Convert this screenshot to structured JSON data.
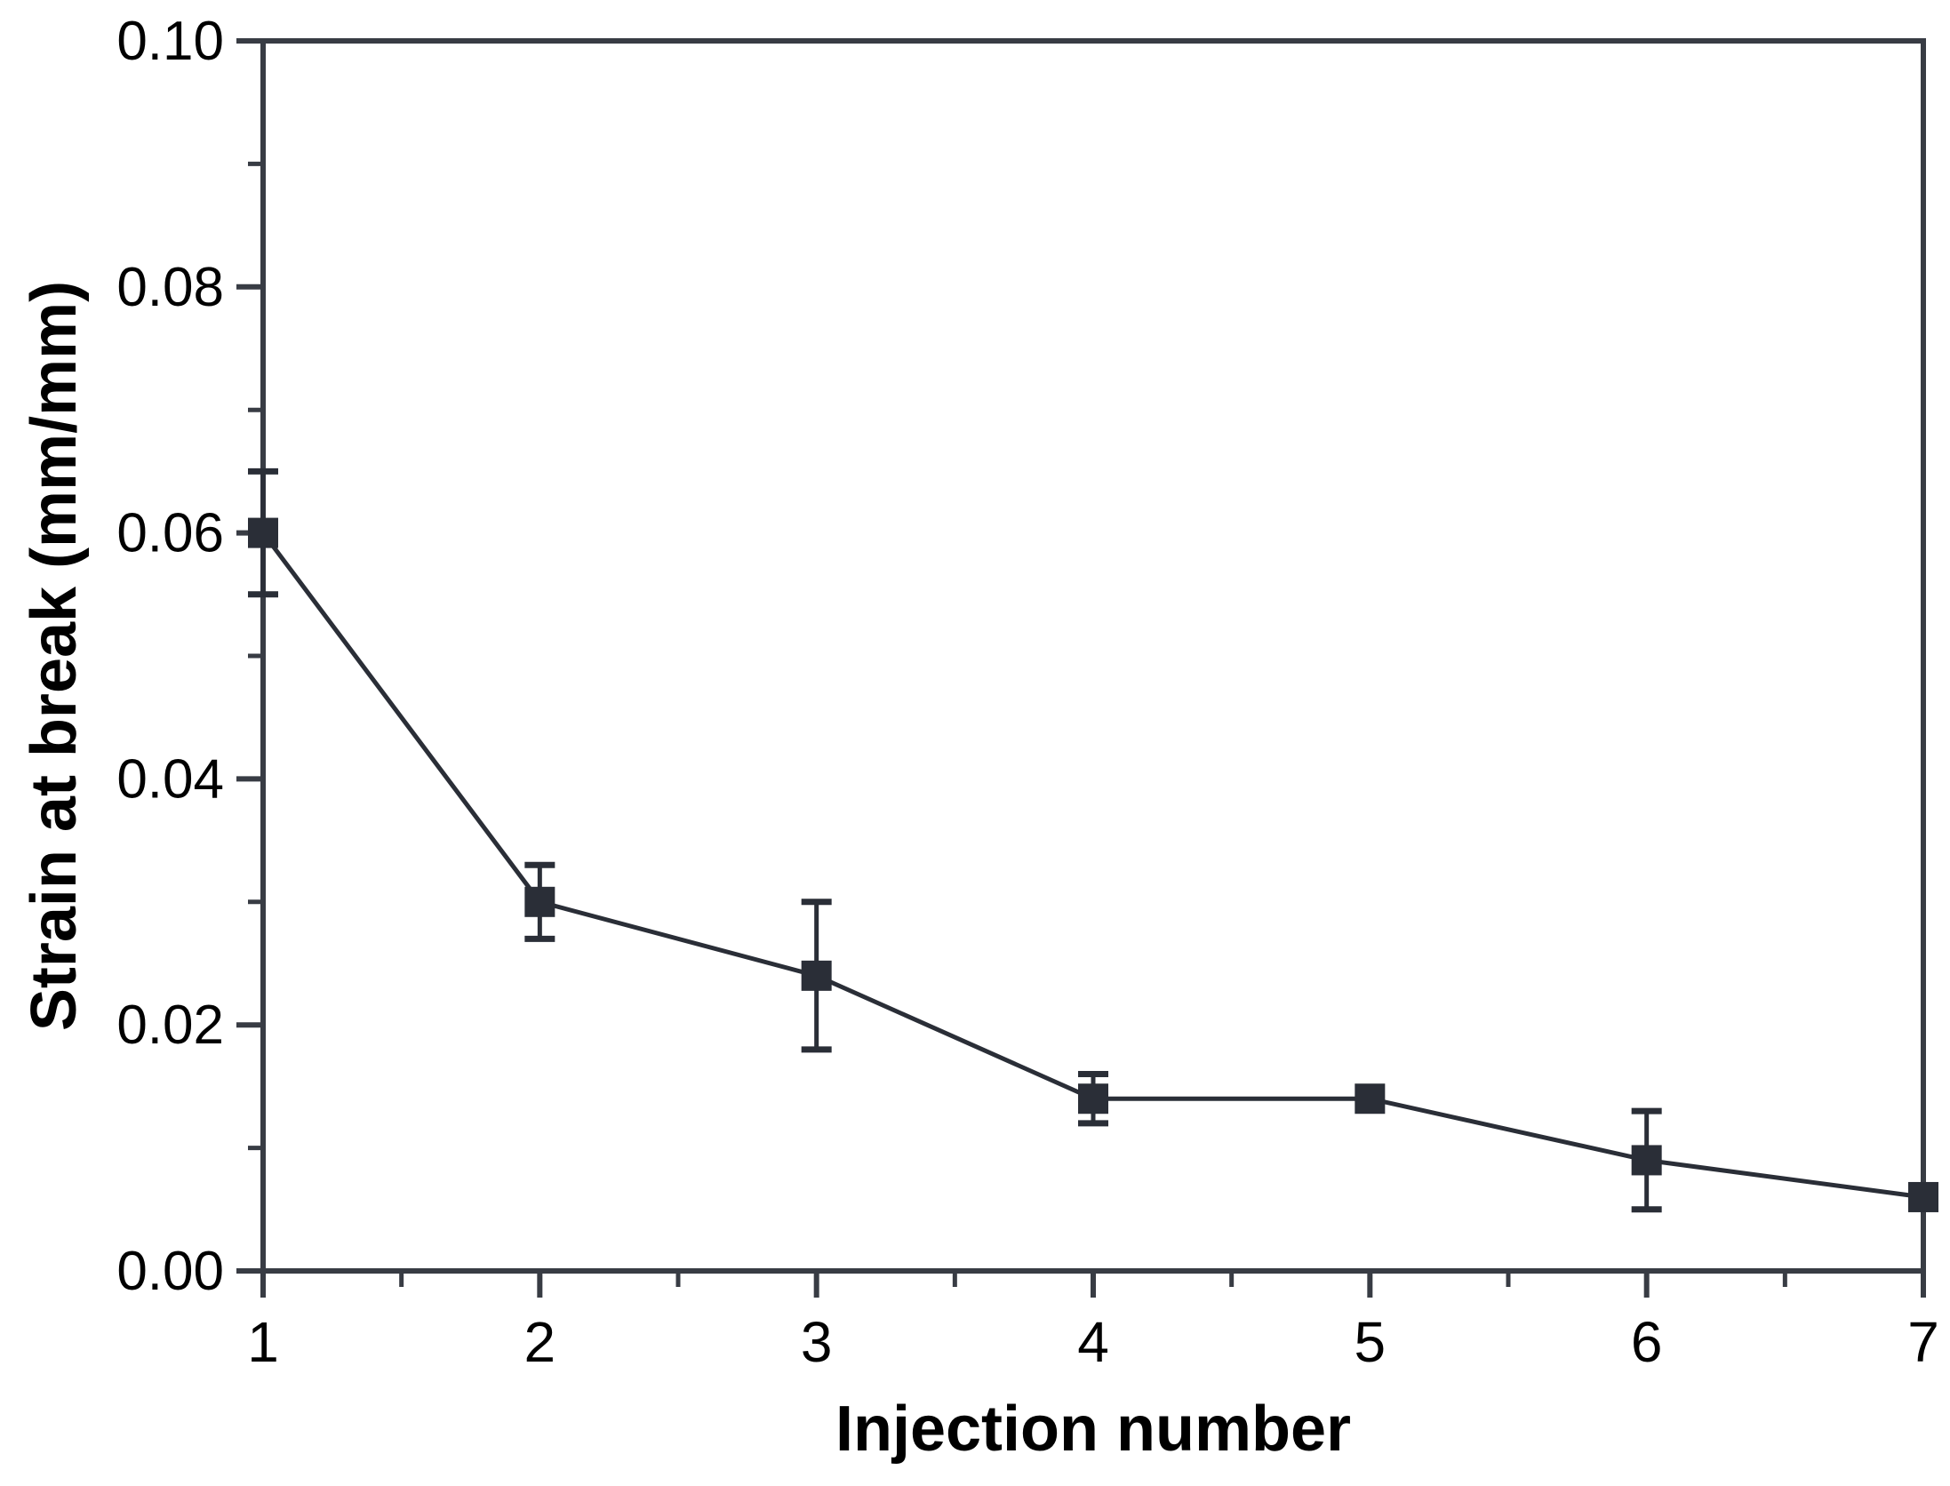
{
  "figure": {
    "background": "#ffffff",
    "axis_color": "#383c44",
    "text_color": "#000000"
  },
  "chart_data": {
    "type": "line",
    "title": "",
    "xlabel": "Injection number",
    "ylabel": "Strain at break (mm/mm)",
    "x": [
      1,
      2,
      3,
      4,
      5,
      6,
      7
    ],
    "y": [
      0.06,
      0.03,
      0.024,
      0.014,
      0.014,
      0.009,
      0.006
    ],
    "yerr": [
      0.005,
      0.003,
      0.006,
      0.002,
      0,
      0.004,
      0
    ],
    "xlim": [
      1,
      7
    ],
    "ylim": [
      0.0,
      0.1
    ],
    "x_major_ticks": [
      1,
      2,
      3,
      4,
      5,
      6,
      7
    ],
    "x_tick_labels": [
      "1",
      "2",
      "3",
      "4",
      "5",
      "6",
      "7"
    ],
    "x_minor_ticks": [
      1.5,
      2.5,
      3.5,
      4.5,
      5.5,
      6.5
    ],
    "y_major_ticks": [
      0.0,
      0.02,
      0.04,
      0.06,
      0.08,
      0.1
    ],
    "y_tick_labels": [
      "0.00",
      "0.02",
      "0.04",
      "0.06",
      "0.08",
      "0.10"
    ],
    "y_minor_ticks": [
      0.01,
      0.03,
      0.05,
      0.07,
      0.09
    ],
    "grid": false,
    "legend": null,
    "marker": "square",
    "series_color": "#2a2e37",
    "error_bars": true
  }
}
